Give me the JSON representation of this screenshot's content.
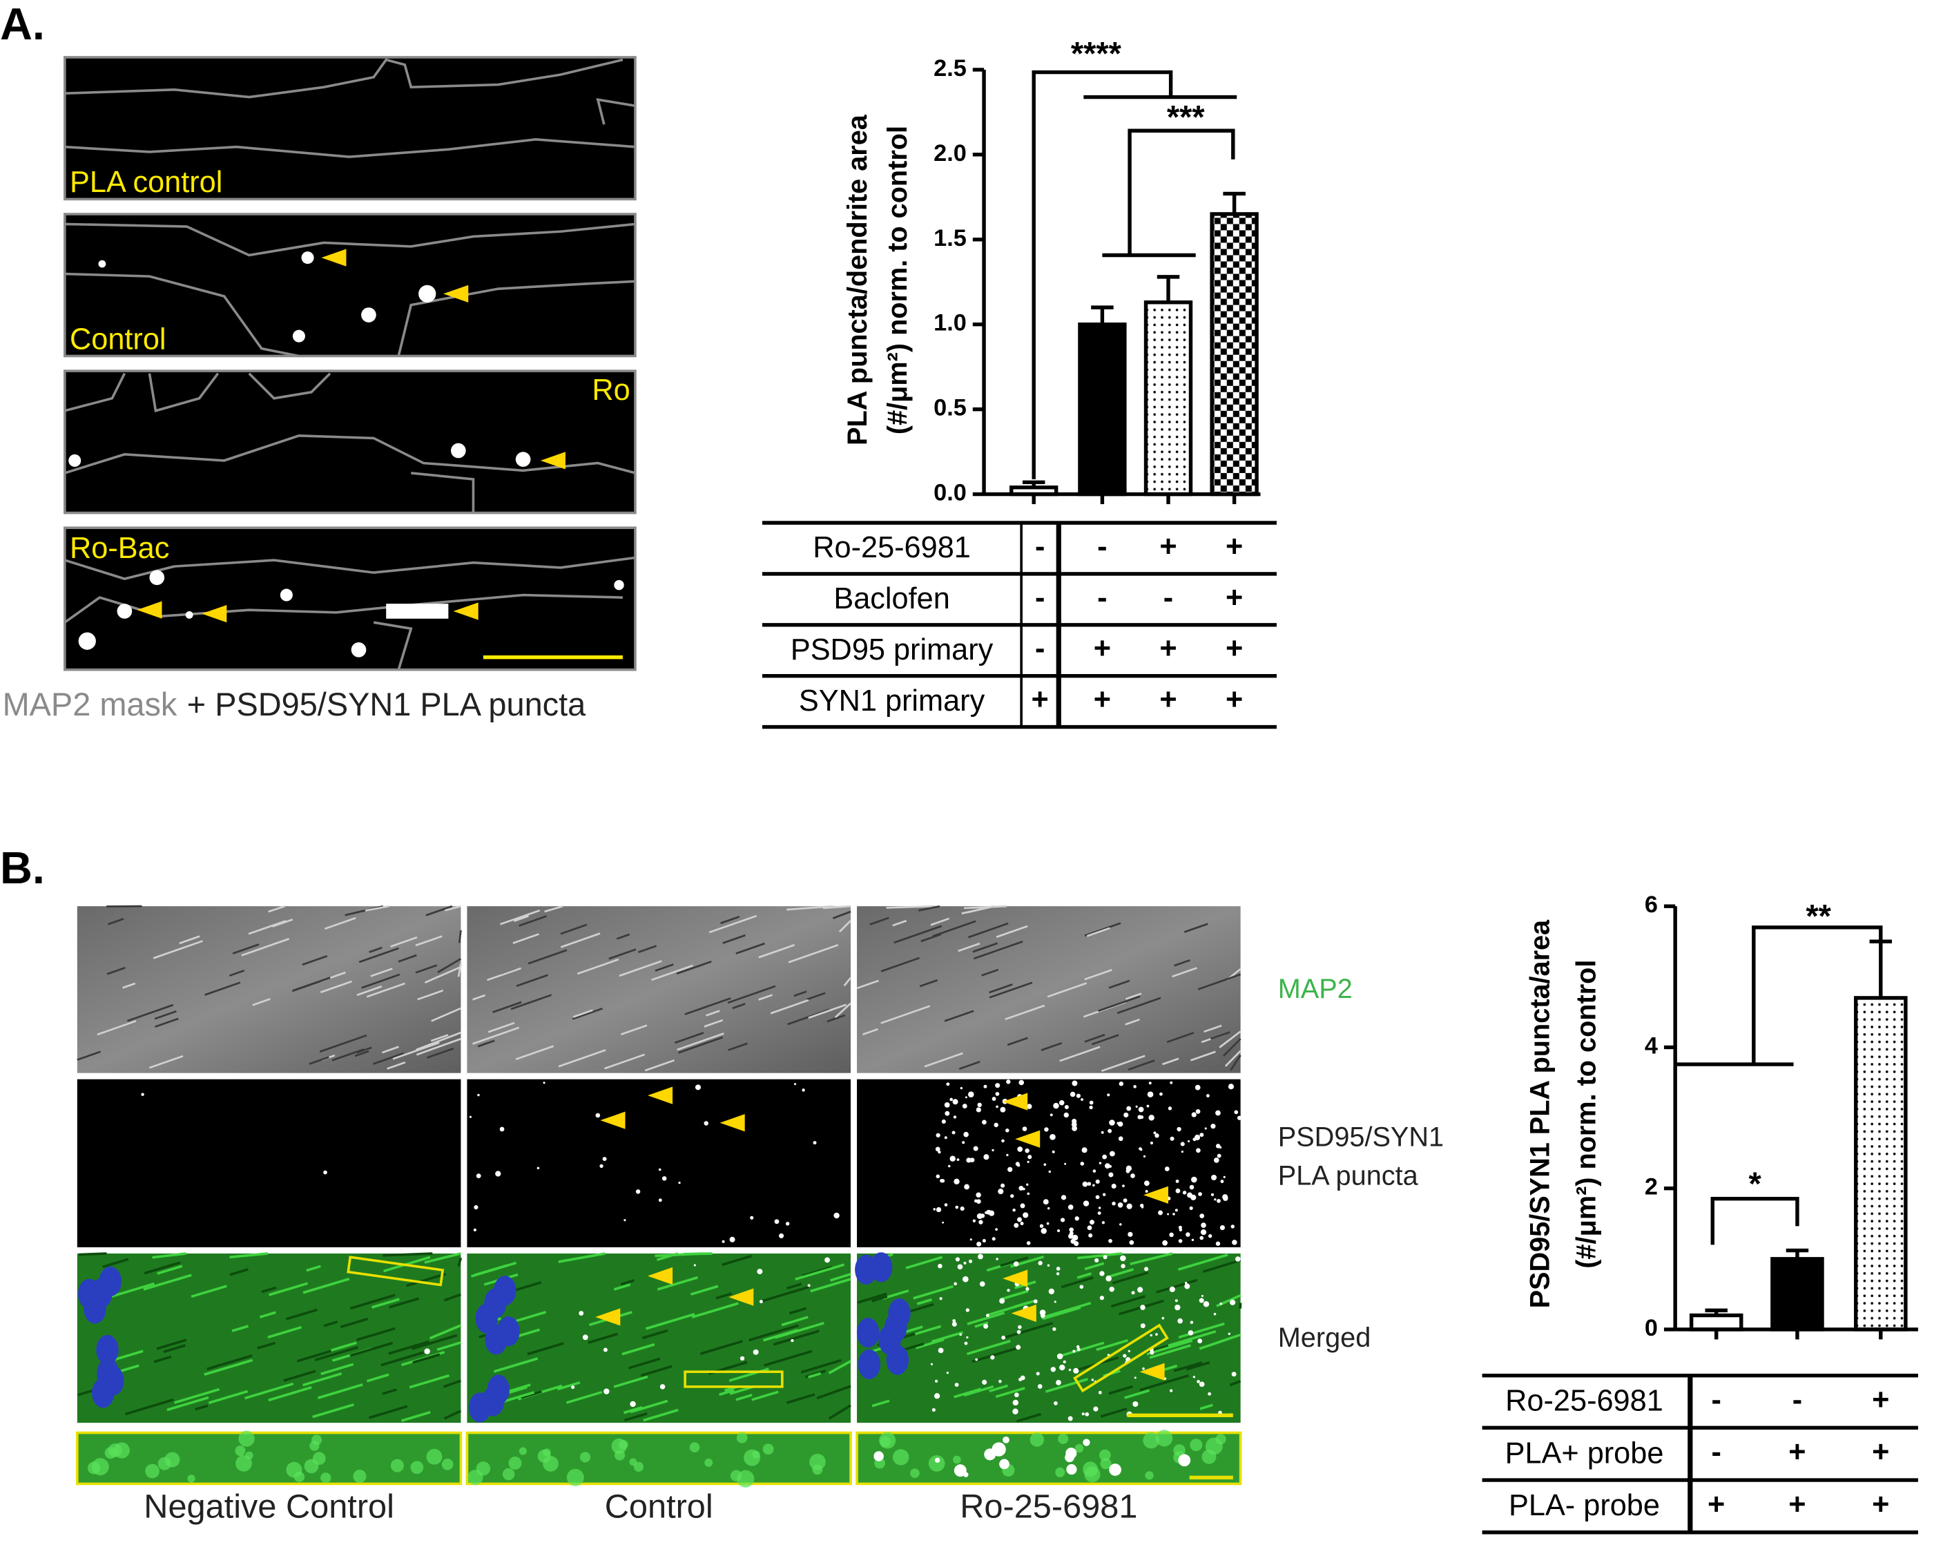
{
  "panels": [
    "A.",
    "B."
  ],
  "panel_a_images": {
    "labels": [
      "PLA control",
      "Control",
      "Ro",
      "Ro-Bac"
    ],
    "caption": [
      "MAP2 mask",
      "+ PSD95/SYN1 PLA puncta"
    ]
  },
  "panel_b_images": {
    "rows": [
      "MAP2",
      "PSD95/SYN1",
      "PLA puncta",
      "Merged"
    ],
    "columns": [
      "Negative Control",
      "Control",
      "Ro-25-6981"
    ]
  },
  "chart_data": [
    {
      "type": "bar",
      "ylabel": [
        "PLA puncta/dendrite area",
        "(#/μm²) norm. to control"
      ],
      "values": [
        0.04,
        1.0,
        1.13,
        1.65
      ],
      "errors": [
        0.03,
        0.1,
        0.15,
        0.12
      ],
      "fills": [
        "white",
        "black",
        "dots",
        "checker"
      ],
      "ylim": [
        0,
        2.5
      ],
      "yticks": [
        {
          "value": 0,
          "label": "0.0"
        },
        0.5,
        {
          "value": 1,
          "label": "1.0"
        },
        1.5,
        {
          "value": 2,
          "label": "2.0"
        },
        2.5
      ],
      "annotations": [
        "****",
        "***"
      ],
      "table": {
        "rows": [
          [
            "Ro-25-6981",
            "-",
            "-",
            "+",
            "+"
          ],
          [
            "Baclofen",
            "-",
            "-",
            "-",
            "+"
          ],
          [
            "PSD95 primary",
            "-",
            "+",
            "+",
            "+"
          ],
          [
            "SYN1 primary",
            "+",
            "+",
            "+",
            "+"
          ]
        ]
      }
    },
    {
      "type": "bar",
      "ylabel": [
        "PSD95/SYN1 PLA puncta/area",
        "(#/μm²) norm. to control"
      ],
      "values": [
        0.2,
        1.0,
        4.7
      ],
      "errors": [
        0.07,
        0.12,
        0.8
      ],
      "fills": [
        "white",
        "black",
        "dots"
      ],
      "ylim": [
        0,
        6
      ],
      "yticks": [
        0,
        2,
        4,
        6
      ],
      "annotations": [
        "**",
        "*"
      ],
      "table": {
        "rows": [
          [
            "Ro-25-6981",
            "-",
            "-",
            "+"
          ],
          [
            "PLA+ probe",
            "-",
            "+",
            "+"
          ],
          [
            "PLA- probe",
            "+",
            "+",
            "+"
          ]
        ]
      }
    }
  ]
}
